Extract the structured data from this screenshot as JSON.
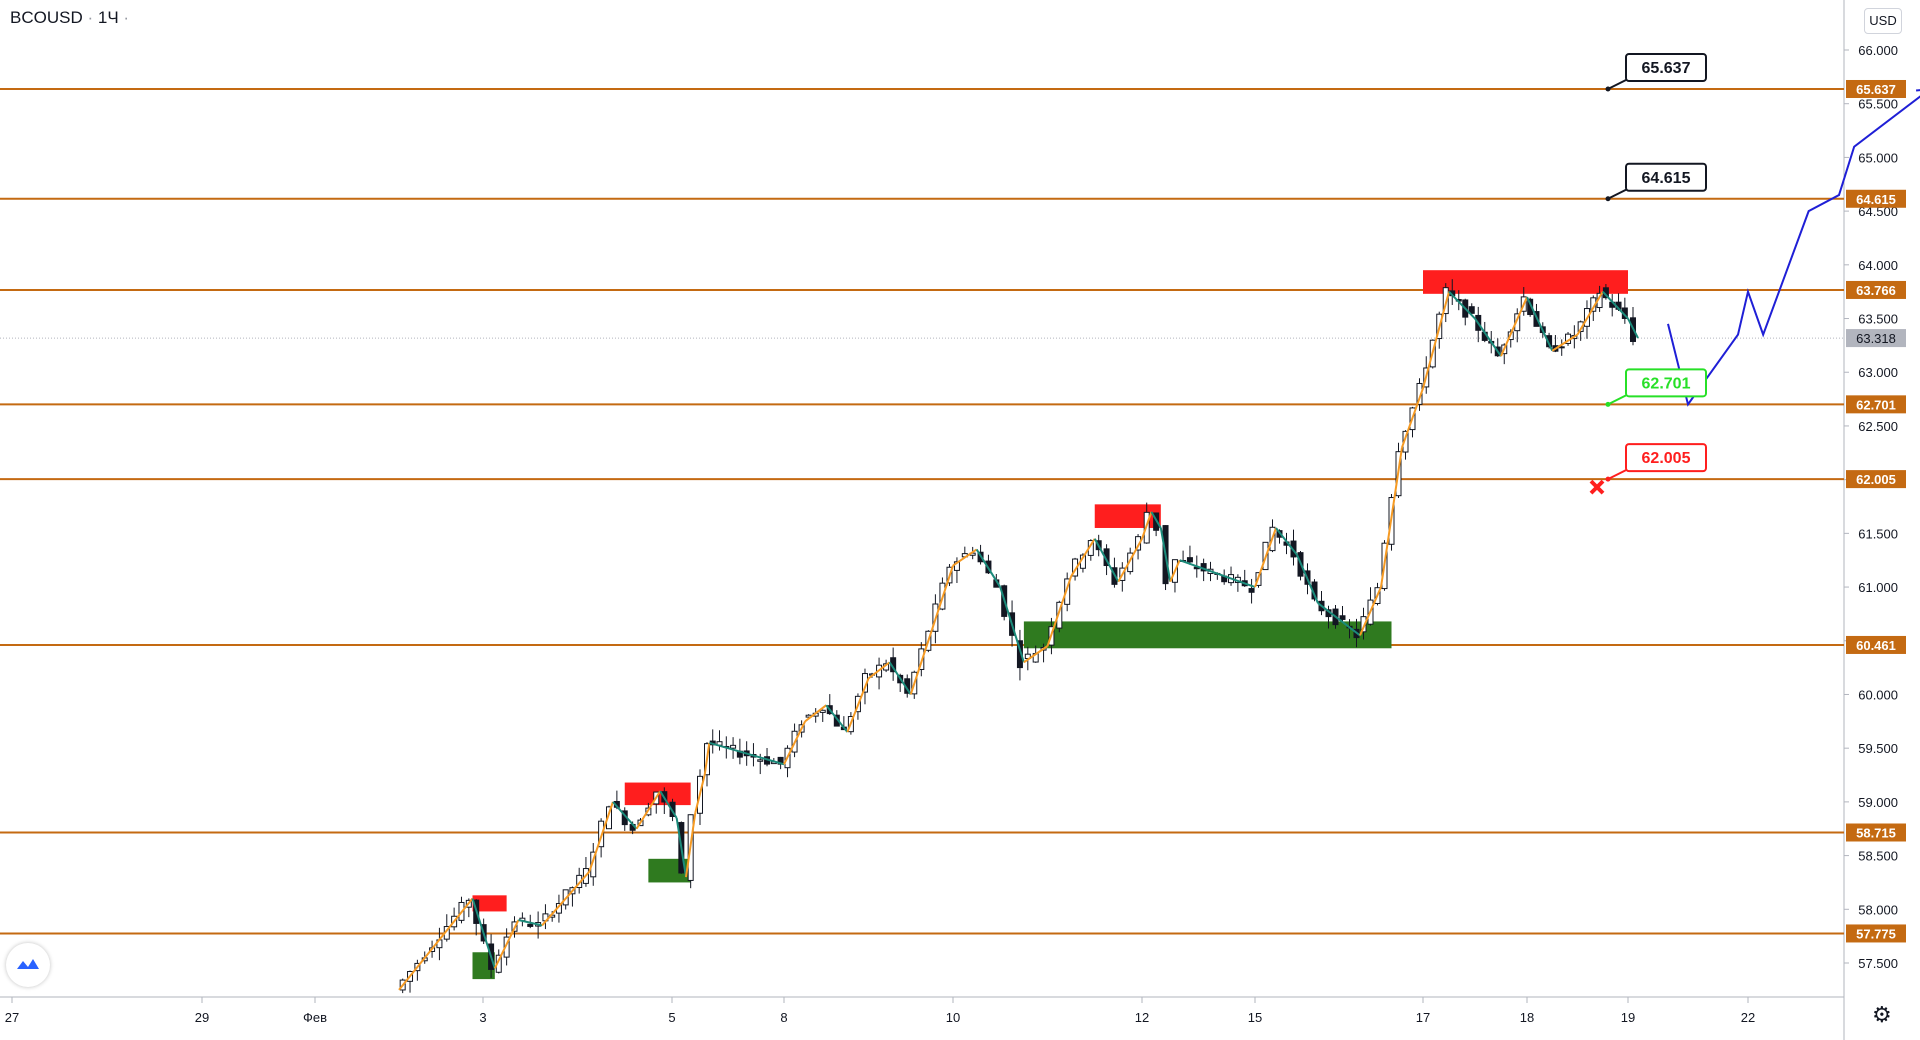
{
  "header": {
    "symbol": "BCOUSD",
    "separator": "·",
    "interval": "1Ч",
    "dot": "·"
  },
  "currency": "USD",
  "colors": {
    "level_line": "#c46a12",
    "level_label_bg": "#c46a12",
    "current_price_bg": "#b2b5be",
    "bull_candle": "#131722",
    "zigzag_up": "#f59a23",
    "zigzag_down": "#1b8a7a",
    "forecast": "#1f1fd6",
    "supply_zone": "#ff1e1e",
    "demand_zone": "#2f7a1f",
    "target_green": "#27e027",
    "target_red": "#ff1e1e"
  },
  "icons": {
    "logo": "tradingview-cloud-icon",
    "settings": "gear-icon",
    "stop": "cross-icon"
  },
  "chart_data": {
    "type": "candlestick",
    "title": "",
    "y_axis": {
      "min": 57.2,
      "max": 66.2,
      "ticks": [
        "66.000",
        "65.500",
        "65.000",
        "64.500",
        "64.000",
        "63.500",
        "63.000",
        "62.500",
        "62.000",
        "61.500",
        "61.000",
        "60.500",
        "60.000",
        "59.500",
        "59.000",
        "58.500",
        "58.000",
        "57.500"
      ]
    },
    "x_axis": {
      "ticks": [
        "27",
        "29",
        "Фев",
        "3",
        "5",
        "8",
        "10",
        "12",
        "15",
        "17",
        "18",
        "19",
        "22"
      ]
    },
    "current_price": {
      "label": "63.318",
      "value": 63.318
    },
    "levels": [
      {
        "label": "65.637",
        "value": 65.637
      },
      {
        "label": "64.615",
        "value": 64.615
      },
      {
        "label": "63.766",
        "value": 63.766
      },
      {
        "label": "62.701",
        "value": 62.701
      },
      {
        "label": "62.005",
        "value": 62.005
      },
      {
        "label": "60.461",
        "value": 60.461
      },
      {
        "label": "58.715",
        "value": 58.715
      },
      {
        "label": "57.775",
        "value": 57.775
      }
    ],
    "targets": [
      {
        "label": "65.637",
        "value": 65.637,
        "style": "black"
      },
      {
        "label": "64.615",
        "value": 64.615,
        "style": "black"
      },
      {
        "label": "62.701",
        "value": 62.701,
        "style": "green"
      },
      {
        "label": "62.005",
        "value": 62.005,
        "style": "red"
      }
    ],
    "price_path": [
      [
        "2021-02-02 00:00",
        57.25
      ],
      [
        "2021-02-02 21:00",
        58.1
      ],
      [
        "2021-02-03 03:00",
        57.45
      ],
      [
        "2021-02-03 09:00",
        57.9
      ],
      [
        "2021-02-03 15:00",
        57.85
      ],
      [
        "2021-02-04 03:00",
        58.35
      ],
      [
        "2021-02-04 09:00",
        59.0
      ],
      [
        "2021-02-04 15:00",
        58.75
      ],
      [
        "2021-02-04 21:00",
        59.1
      ],
      [
        "2021-02-05 03:00",
        58.85
      ],
      [
        "2021-02-05 09:00",
        58.3
      ],
      [
        "2021-02-05 15:00",
        58.9
      ],
      [
        "2021-02-05 21:00",
        59.25
      ],
      [
        "2021-02-06 00:00",
        59.55
      ],
      [
        "2021-02-08 00:00",
        59.35
      ],
      [
        "2021-02-08 06:00",
        59.75
      ],
      [
        "2021-02-08 12:00",
        59.9
      ],
      [
        "2021-02-08 18:00",
        59.65
      ],
      [
        "2021-02-09 00:00",
        60.15
      ],
      [
        "2021-02-09 06:00",
        60.3
      ],
      [
        "2021-02-09 12:00",
        60.0
      ],
      [
        "2021-02-09 18:00",
        60.6
      ],
      [
        "2021-02-10 00:00",
        61.2
      ],
      [
        "2021-02-10 06:00",
        61.35
      ],
      [
        "2021-02-10 12:00",
        61.0
      ],
      [
        "2021-02-10 18:00",
        60.3
      ],
      [
        "2021-02-11 00:00",
        60.45
      ],
      [
        "2021-02-11 06:00",
        61.1
      ],
      [
        "2021-02-11 12:00",
        61.45
      ],
      [
        "2021-02-11 18:00",
        61.05
      ],
      [
        "2021-02-12 00:00",
        61.45
      ],
      [
        "2021-02-12 06:00",
        61.7
      ],
      [
        "2021-02-12 12:00",
        61.55
      ],
      [
        "2021-02-12 18:00",
        61.05
      ],
      [
        "2021-02-13 00:00",
        61.25
      ],
      [
        "2021-02-15 00:00",
        61.0
      ],
      [
        "2021-02-15 06:00",
        61.55
      ],
      [
        "2021-02-15 12:00",
        61.3
      ],
      [
        "2021-02-15 18:00",
        60.85
      ],
      [
        "2021-02-16 00:00",
        60.7
      ],
      [
        "2021-02-16 06:00",
        60.55
      ],
      [
        "2021-02-16 12:00",
        61.0
      ],
      [
        "2021-02-16 18:00",
        62.3
      ],
      [
        "2021-02-17 00:00",
        62.85
      ],
      [
        "2021-02-17 06:00",
        63.75
      ],
      [
        "2021-02-17 12:00",
        63.5
      ],
      [
        "2021-02-17 18:00",
        63.15
      ],
      [
        "2021-02-18 00:00",
        63.7
      ],
      [
        "2021-02-18 06:00",
        63.2
      ],
      [
        "2021-02-18 12:00",
        63.35
      ],
      [
        "2021-02-18 18:00",
        63.75
      ],
      [
        "2021-02-19 00:00",
        63.5
      ],
      [
        "2021-02-19 06:00",
        63.318
      ]
    ],
    "zones": [
      {
        "type": "supply",
        "from": "2021-02-02 21:00",
        "to": "2021-02-03 06:00",
        "low": 57.98,
        "high": 58.13
      },
      {
        "type": "demand",
        "from": "2021-02-02 21:00",
        "to": "2021-02-03 03:00",
        "low": 57.35,
        "high": 57.6
      },
      {
        "type": "supply",
        "from": "2021-02-04 12:00",
        "to": "2021-02-05 12:00",
        "low": 58.97,
        "high": 59.18
      },
      {
        "type": "demand",
        "from": "2021-02-04 18:00",
        "to": "2021-02-05 12:00",
        "low": 58.25,
        "high": 58.47
      },
      {
        "type": "supply",
        "from": "2021-02-11 12:00",
        "to": "2021-02-12 12:00",
        "low": 61.55,
        "high": 61.77
      },
      {
        "type": "demand",
        "from": "2021-02-10 18:00",
        "to": "2021-02-16 15:00",
        "low": 60.43,
        "high": 60.68
      },
      {
        "type": "supply",
        "from": "2021-02-17 00:00",
        "to": "2021-02-19 00:00",
        "low": 63.73,
        "high": 63.95
      }
    ],
    "forecast_path": [
      [
        "2021-02-20 00:00",
        63.45
      ],
      [
        "2021-02-20 12:00",
        62.701
      ],
      [
        "2021-02-21 18:00",
        63.35
      ],
      [
        "2021-02-22 00:00",
        63.75
      ],
      [
        "2021-02-22 06:00",
        63.35
      ],
      [
        "2021-02-23 00:00",
        64.5
      ],
      [
        "2021-02-23 12:00",
        64.65
      ],
      [
        "2021-02-23 18:00",
        65.1
      ],
      [
        "2021-02-25 00:00",
        65.637
      ]
    ]
  }
}
